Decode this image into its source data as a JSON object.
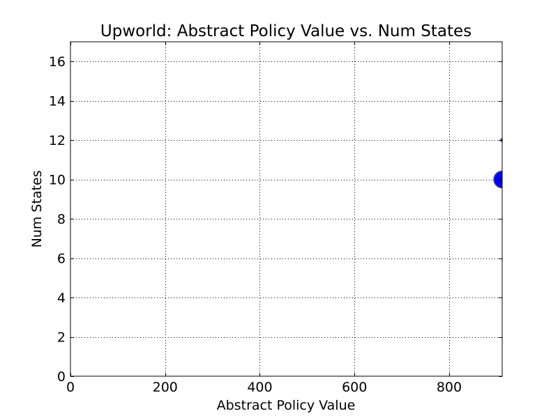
{
  "chart_data": {
    "type": "scatter",
    "title": "Upworld: Abstract Policy Value vs. Num States",
    "xlabel": "Abstract Policy Value",
    "ylabel": "Num States",
    "xlim": [
      0,
      912
    ],
    "ylim": [
      0,
      17
    ],
    "xticks": [
      "0",
      "200",
      "400",
      "600",
      "800"
    ],
    "xtick_values": [
      0,
      200,
      400,
      600,
      800
    ],
    "yticks": [
      "0",
      "2",
      "4",
      "6",
      "8",
      "10",
      "12",
      "14",
      "16"
    ],
    "ytick_values": [
      0,
      2,
      4,
      6,
      8,
      10,
      12,
      14,
      16
    ],
    "grid": true,
    "marker_color": "#0000ff",
    "marker_edge": "#4a4a8a",
    "points": [
      {
        "x": 912,
        "y": 10,
        "size": "large"
      },
      {
        "x": 912,
        "y": 12,
        "size": "small"
      }
    ]
  }
}
